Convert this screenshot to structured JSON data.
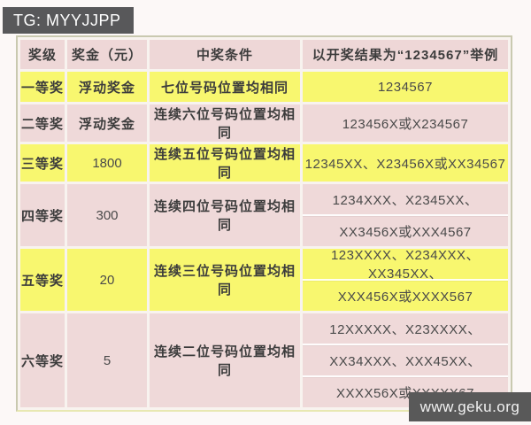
{
  "header": {
    "tag_label": "TG: MYYJJPP"
  },
  "watermark": {
    "text": "www.geku.org"
  },
  "colors": {
    "tag_bar_bg": "#58585a",
    "watermark_bg": "#595959",
    "row_yellow": "#f8f76f",
    "row_pink": "#efd9d9",
    "header_row_bg": "#eed7d7",
    "table_border": "#c9c9b0"
  },
  "table": {
    "columns": [
      "奖级",
      "奖金（元）",
      "中奖条件",
      "以开奖结果为“1234567”举例"
    ],
    "rows": [
      {
        "level": "一等奖",
        "prize": "浮动奖金",
        "condition": "七位号码位置均相同",
        "examples": [
          "1234567"
        ],
        "tone": "yellow"
      },
      {
        "level": "二等奖",
        "prize": "浮动奖金",
        "condition": "连续六位号码位置均相同",
        "examples": [
          "123456X或X234567"
        ],
        "tone": "pink"
      },
      {
        "level": "三等奖",
        "prize": "1800",
        "condition": "连续五位号码位置均相同",
        "examples": [
          "12345XX、X23456X或XX34567"
        ],
        "tone": "yellow"
      },
      {
        "level": "四等奖",
        "prize": "300",
        "condition": "连续四位号码位置均相同",
        "examples": [
          "1234XXX、X2345XX、",
          "XX3456X或XXX4567"
        ],
        "tone": "pink"
      },
      {
        "level": "五等奖",
        "prize": "20",
        "condition": "连续三位号码位置均相同",
        "examples": [
          "123XXXX、X234XXX、XX345XX、",
          "XXX456X或XXXX567"
        ],
        "tone": "yellow"
      },
      {
        "level": "六等奖",
        "prize": "5",
        "condition": "连续二位号码位置均相同",
        "examples": [
          "12XXXXX、X23XXXX、",
          "XX34XXX、XXX45XX、",
          "XXXX56X或XXXXX67"
        ],
        "tone": "pink"
      }
    ]
  }
}
